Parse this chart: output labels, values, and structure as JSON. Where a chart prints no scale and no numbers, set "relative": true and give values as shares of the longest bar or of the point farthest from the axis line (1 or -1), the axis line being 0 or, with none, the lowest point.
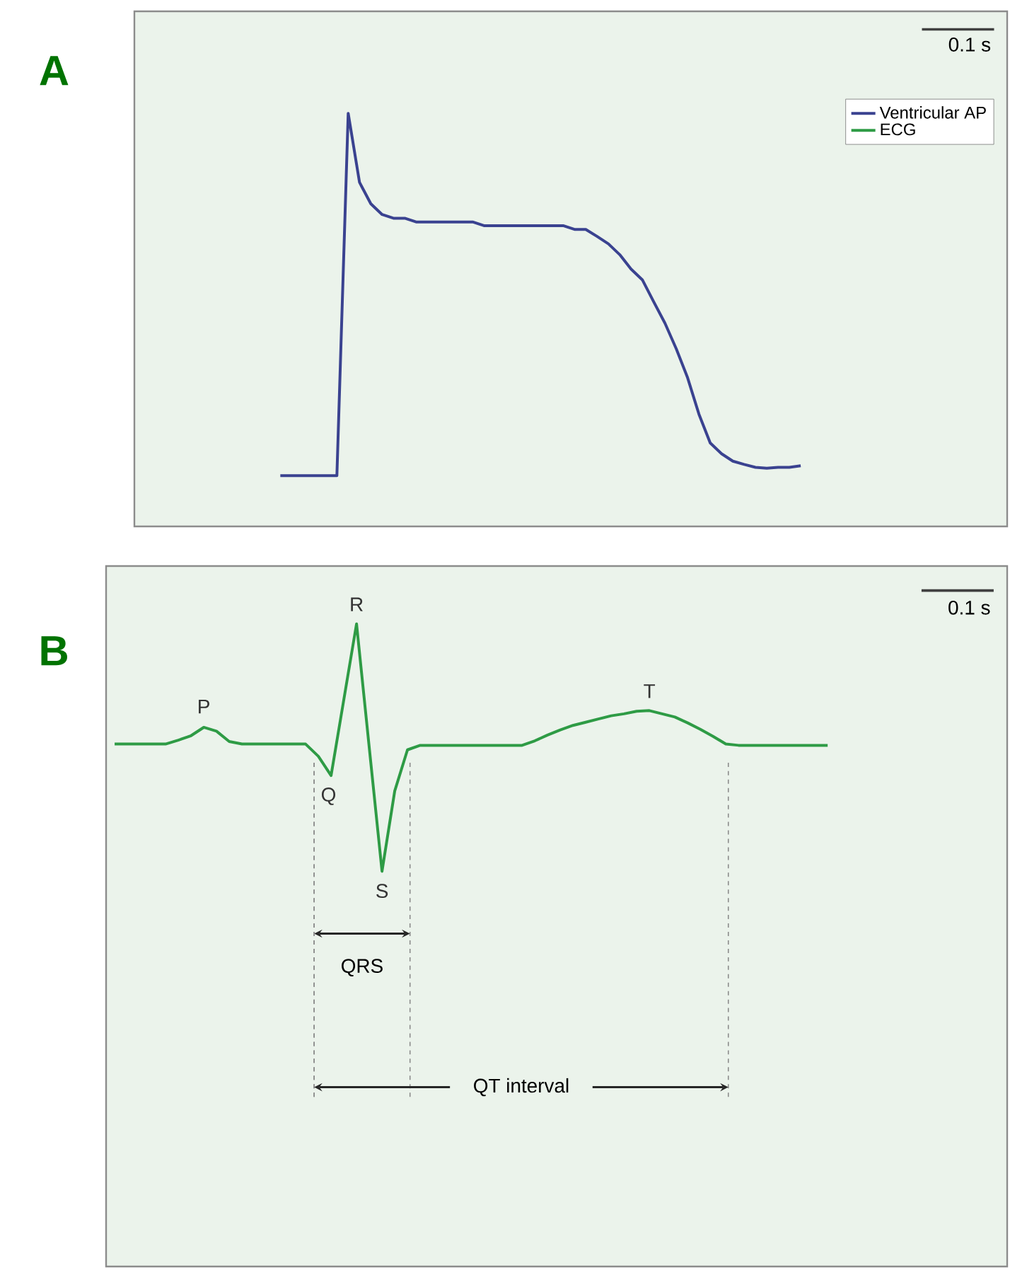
{
  "chart_data": [
    {
      "type": "line",
      "title": "A",
      "relative": true,
      "tick_labels": false,
      "legend": "top right",
      "annotations": [
        "0.1 s"
      ],
      "categories": [
        null,
        null,
        null,
        null,
        null,
        null,
        null,
        null,
        null,
        null,
        null,
        null,
        null,
        null,
        null,
        null,
        null,
        null,
        null,
        null,
        null,
        null,
        null,
        null,
        null,
        null,
        null,
        null,
        null,
        null,
        null,
        null,
        null,
        null,
        null,
        null,
        null,
        null,
        null,
        null,
        null,
        null,
        null,
        null,
        null,
        null,
        null
      ],
      "series": [
        {
          "name": "Ventricular AP",
          "color": "#3a4290",
          "values": [
            0.123,
            0.123,
            0.123,
            0.123,
            0.123,
            0.123,
            1,
            0.833,
            0.781,
            0.755,
            0.746,
            0.746,
            0.737,
            0.737,
            0.737,
            0.737,
            0.737,
            0.737,
            0.728,
            0.728,
            0.728,
            0.728,
            0.728,
            0.728,
            0.728,
            0.728,
            0.719,
            0.719,
            0.702,
            0.684,
            0.658,
            0.623,
            0.597,
            0.544,
            0.492,
            0.43,
            0.36,
            0.272,
            0.202,
            0.176,
            0.158,
            0.15,
            0.143,
            0.141,
            0.143,
            0.143,
            0.147
          ]
        }
      ]
    },
    {
      "type": "line",
      "title": "B",
      "relative": true,
      "tick_labels": false,
      "annotations": [
        "0.1 s",
        "P",
        "R",
        "Q",
        "S",
        "T",
        "QRS",
        "QT interval"
      ],
      "categories": [
        null,
        null,
        null,
        null,
        null,
        null,
        null,
        null,
        null,
        null,
        null,
        null,
        null,
        null,
        null,
        null,
        null,
        null,
        null,
        null,
        null,
        null,
        null,
        null,
        null,
        null,
        null,
        null,
        null,
        null,
        null,
        null,
        null,
        null,
        null,
        null,
        null,
        null,
        null,
        null,
        null,
        null,
        null,
        null,
        null,
        null,
        null,
        null,
        null,
        null,
        null,
        null,
        null,
        null,
        null,
        null,
        null
      ],
      "series": [
        {
          "name": "ECG",
          "color": "#2e9b45",
          "values": [
            0.813,
            0.813,
            0.813,
            0.813,
            0.813,
            0.819,
            0.826,
            0.839,
            0.833,
            0.817,
            0.813,
            0.813,
            0.813,
            0.813,
            0.813,
            0.813,
            0.794,
            0.764,
            0.882,
            1,
            0.807,
            0.615,
            0.74,
            0.804,
            0.811,
            0.811,
            0.811,
            0.811,
            0.811,
            0.811,
            0.811,
            0.811,
            0.811,
            0.818,
            0.827,
            0.835,
            0.842,
            0.847,
            0.852,
            0.857,
            0.86,
            0.864,
            0.865,
            0.86,
            0.855,
            0.846,
            0.836,
            0.825,
            0.813,
            0.811,
            0.811,
            0.811,
            0.811,
            0.811,
            0.811,
            0.811,
            0.811
          ]
        }
      ]
    }
  ]
}
